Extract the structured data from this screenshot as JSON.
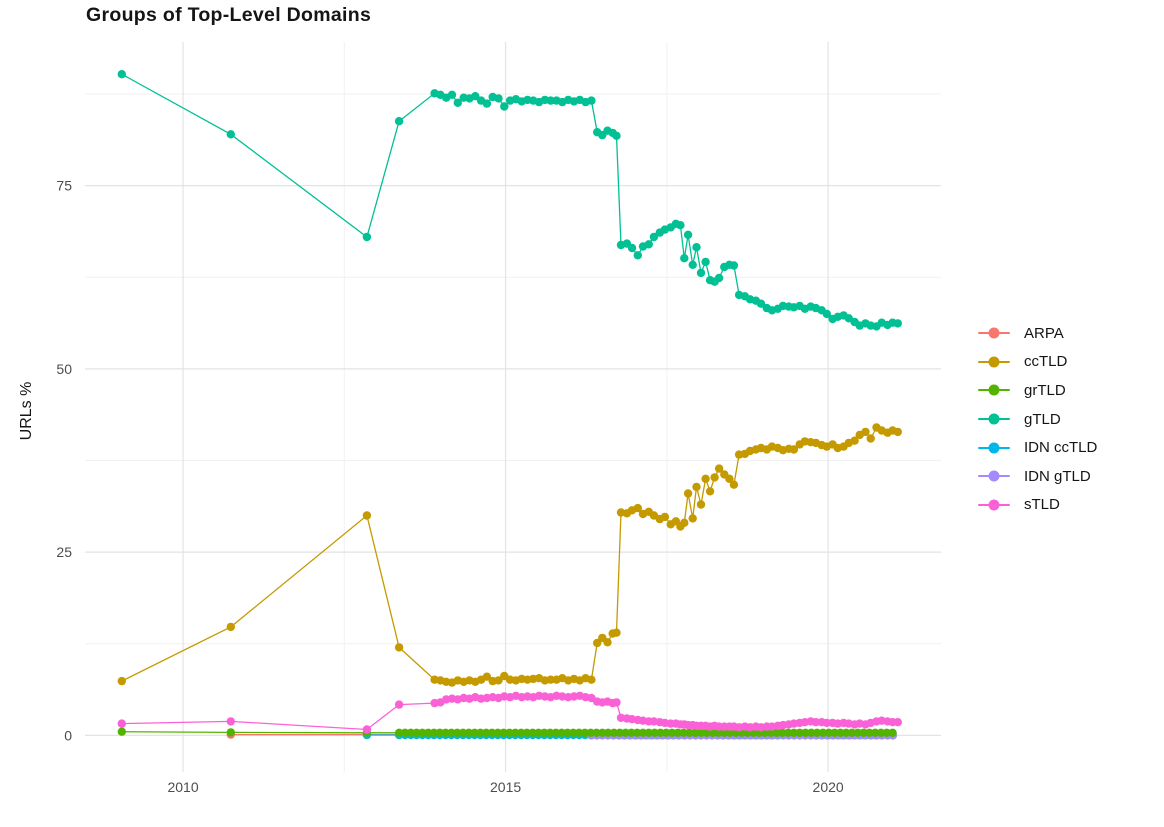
{
  "chart_data": {
    "type": "line",
    "title": "Groups of Top-Level Domains",
    "xlabel": "",
    "ylabel": "URLs %",
    "x_ticks": [
      2010,
      2015,
      2020
    ],
    "x_minor_gridlines": [
      2012.5,
      2017.5
    ],
    "y_ticks": [
      0,
      25,
      50,
      75
    ],
    "y_minor_gridlines": [
      12.5,
      37.5,
      62.5,
      87.5
    ],
    "xlim": [
      2008.48,
      2021.75
    ],
    "ylim": [
      -5,
      94.6
    ],
    "grid": true,
    "legend_position": "right",
    "series": [
      {
        "name": "ARPA",
        "color": "#F8766D",
        "extra_points": [
          [
            2010.74,
            0.1
          ],
          [
            2012.85,
            0.1
          ]
        ],
        "flat": {
          "from": 2013.35,
          "to": 2021.08,
          "step": 0.09,
          "value": 0.1
        }
      },
      {
        "name": "ccTLD",
        "color": "#C49A00",
        "points": [
          [
            2009.05,
            7.4
          ],
          [
            2010.74,
            14.8
          ],
          [
            2012.85,
            30.0
          ],
          [
            2013.35,
            12.0
          ],
          [
            2013.9,
            7.6
          ],
          [
            2013.99,
            7.5
          ],
          [
            2014.08,
            7.3
          ],
          [
            2014.17,
            7.2
          ],
          [
            2014.26,
            7.5
          ],
          [
            2014.35,
            7.3
          ],
          [
            2014.44,
            7.5
          ],
          [
            2014.53,
            7.3
          ],
          [
            2014.62,
            7.6
          ],
          [
            2014.71,
            8.0
          ],
          [
            2014.8,
            7.4
          ],
          [
            2014.89,
            7.5
          ],
          [
            2014.98,
            8.1
          ],
          [
            2015.07,
            7.6
          ],
          [
            2015.16,
            7.5
          ],
          [
            2015.25,
            7.7
          ],
          [
            2015.34,
            7.6
          ],
          [
            2015.43,
            7.7
          ],
          [
            2015.52,
            7.8
          ],
          [
            2015.61,
            7.5
          ],
          [
            2015.7,
            7.6
          ],
          [
            2015.79,
            7.6
          ],
          [
            2015.88,
            7.8
          ],
          [
            2015.97,
            7.5
          ],
          [
            2016.06,
            7.7
          ],
          [
            2016.15,
            7.5
          ],
          [
            2016.24,
            7.8
          ],
          [
            2016.33,
            7.6
          ],
          [
            2016.42,
            12.6
          ],
          [
            2016.5,
            13.3
          ],
          [
            2016.58,
            12.7
          ],
          [
            2016.66,
            13.9
          ],
          [
            2016.72,
            14.0
          ],
          [
            2016.79,
            30.4
          ],
          [
            2016.88,
            30.3
          ],
          [
            2016.96,
            30.7
          ],
          [
            2017.05,
            31.0
          ],
          [
            2017.13,
            30.2
          ],
          [
            2017.22,
            30.5
          ],
          [
            2017.3,
            30.0
          ],
          [
            2017.39,
            29.5
          ],
          [
            2017.47,
            29.8
          ],
          [
            2017.56,
            28.8
          ],
          [
            2017.64,
            29.2
          ],
          [
            2017.71,
            28.5
          ],
          [
            2017.77,
            29.0
          ],
          [
            2017.83,
            33.0
          ],
          [
            2017.9,
            29.6
          ],
          [
            2017.96,
            33.9
          ],
          [
            2018.03,
            31.5
          ],
          [
            2018.1,
            35.0
          ],
          [
            2018.17,
            33.3
          ],
          [
            2018.24,
            35.2
          ],
          [
            2018.31,
            36.4
          ],
          [
            2018.39,
            35.6
          ],
          [
            2018.47,
            35.0
          ],
          [
            2018.54,
            34.2
          ],
          [
            2018.62,
            38.3
          ],
          [
            2018.71,
            38.4
          ],
          [
            2018.79,
            38.8
          ],
          [
            2018.88,
            39.0
          ],
          [
            2018.96,
            39.2
          ],
          [
            2019.05,
            39.0
          ],
          [
            2019.13,
            39.4
          ],
          [
            2019.22,
            39.2
          ],
          [
            2019.3,
            38.9
          ],
          [
            2019.39,
            39.1
          ],
          [
            2019.47,
            39.0
          ],
          [
            2019.56,
            39.7
          ],
          [
            2019.64,
            40.1
          ],
          [
            2019.73,
            40.0
          ],
          [
            2019.81,
            39.9
          ],
          [
            2019.9,
            39.6
          ],
          [
            2019.98,
            39.4
          ],
          [
            2020.07,
            39.7
          ],
          [
            2020.15,
            39.2
          ],
          [
            2020.24,
            39.4
          ],
          [
            2020.32,
            39.9
          ],
          [
            2020.41,
            40.2
          ],
          [
            2020.49,
            41.0
          ],
          [
            2020.58,
            41.4
          ],
          [
            2020.66,
            40.5
          ],
          [
            2020.75,
            42.0
          ],
          [
            2020.83,
            41.6
          ],
          [
            2020.92,
            41.3
          ],
          [
            2021.0,
            41.6
          ],
          [
            2021.08,
            41.4
          ]
        ]
      },
      {
        "name": "grTLD",
        "color": "#53B400",
        "extra_points": [
          [
            2009.05,
            0.5
          ],
          [
            2010.74,
            0.4
          ],
          [
            2012.85,
            0.35
          ]
        ],
        "flat": {
          "from": 2013.35,
          "to": 2021.08,
          "step": 0.09,
          "value": 0.35
        }
      },
      {
        "name": "gTLD",
        "color": "#00C094",
        "points": [
          [
            2009.05,
            90.2
          ],
          [
            2010.74,
            82.0
          ],
          [
            2012.85,
            68.0
          ],
          [
            2013.35,
            83.8
          ],
          [
            2013.9,
            87.6
          ],
          [
            2013.99,
            87.4
          ],
          [
            2014.08,
            87.0
          ],
          [
            2014.17,
            87.4
          ],
          [
            2014.26,
            86.3
          ],
          [
            2014.35,
            87.0
          ],
          [
            2014.44,
            86.9
          ],
          [
            2014.53,
            87.2
          ],
          [
            2014.62,
            86.6
          ],
          [
            2014.71,
            86.2
          ],
          [
            2014.8,
            87.1
          ],
          [
            2014.89,
            86.9
          ],
          [
            2014.98,
            85.8
          ],
          [
            2015.07,
            86.6
          ],
          [
            2015.16,
            86.8
          ],
          [
            2015.25,
            86.5
          ],
          [
            2015.34,
            86.7
          ],
          [
            2015.43,
            86.6
          ],
          [
            2015.52,
            86.4
          ],
          [
            2015.61,
            86.7
          ],
          [
            2015.7,
            86.6
          ],
          [
            2015.79,
            86.6
          ],
          [
            2015.88,
            86.4
          ],
          [
            2015.97,
            86.7
          ],
          [
            2016.06,
            86.5
          ],
          [
            2016.15,
            86.7
          ],
          [
            2016.24,
            86.4
          ],
          [
            2016.33,
            86.6
          ],
          [
            2016.42,
            82.3
          ],
          [
            2016.5,
            81.9
          ],
          [
            2016.58,
            82.5
          ],
          [
            2016.66,
            82.2
          ],
          [
            2016.72,
            81.8
          ],
          [
            2016.79,
            66.9
          ],
          [
            2016.88,
            67.1
          ],
          [
            2016.96,
            66.5
          ],
          [
            2017.05,
            65.5
          ],
          [
            2017.13,
            66.7
          ],
          [
            2017.22,
            67.0
          ],
          [
            2017.3,
            68.0
          ],
          [
            2017.39,
            68.6
          ],
          [
            2017.47,
            69.0
          ],
          [
            2017.56,
            69.3
          ],
          [
            2017.64,
            69.8
          ],
          [
            2017.71,
            69.6
          ],
          [
            2017.77,
            65.1
          ],
          [
            2017.83,
            68.3
          ],
          [
            2017.9,
            64.2
          ],
          [
            2017.96,
            66.6
          ],
          [
            2018.03,
            63.1
          ],
          [
            2018.1,
            64.6
          ],
          [
            2018.17,
            62.1
          ],
          [
            2018.24,
            61.9
          ],
          [
            2018.31,
            62.4
          ],
          [
            2018.39,
            63.9
          ],
          [
            2018.47,
            64.2
          ],
          [
            2018.54,
            64.1
          ],
          [
            2018.62,
            60.1
          ],
          [
            2018.71,
            59.9
          ],
          [
            2018.79,
            59.5
          ],
          [
            2018.88,
            59.3
          ],
          [
            2018.96,
            58.9
          ],
          [
            2019.05,
            58.3
          ],
          [
            2019.13,
            58.0
          ],
          [
            2019.22,
            58.2
          ],
          [
            2019.3,
            58.6
          ],
          [
            2019.39,
            58.5
          ],
          [
            2019.47,
            58.4
          ],
          [
            2019.56,
            58.6
          ],
          [
            2019.64,
            58.2
          ],
          [
            2019.73,
            58.5
          ],
          [
            2019.81,
            58.3
          ],
          [
            2019.9,
            58.0
          ],
          [
            2019.98,
            57.5
          ],
          [
            2020.07,
            56.8
          ],
          [
            2020.15,
            57.1
          ],
          [
            2020.24,
            57.3
          ],
          [
            2020.32,
            56.9
          ],
          [
            2020.41,
            56.4
          ],
          [
            2020.49,
            55.9
          ],
          [
            2020.58,
            56.2
          ],
          [
            2020.66,
            55.9
          ],
          [
            2020.75,
            55.8
          ],
          [
            2020.83,
            56.3
          ],
          [
            2020.92,
            56.0
          ],
          [
            2021.0,
            56.3
          ],
          [
            2021.08,
            56.2
          ]
        ]
      },
      {
        "name": "IDN ccTLD",
        "color": "#00B6EB",
        "extra_points": [
          [
            2012.85,
            0.05
          ]
        ],
        "flat": {
          "from": 2013.35,
          "to": 2021.08,
          "step": 0.09,
          "value": 0.05
        }
      },
      {
        "name": "IDN gTLD",
        "color": "#A58AFF",
        "flat": {
          "from": 2016.33,
          "to": 2021.08,
          "step": 0.085,
          "value": 0.0
        }
      },
      {
        "name": "sTLD",
        "color": "#FB61D7",
        "points": [
          [
            2009.05,
            1.6
          ],
          [
            2010.74,
            1.9
          ],
          [
            2012.85,
            0.8
          ],
          [
            2013.35,
            4.2
          ],
          [
            2013.9,
            4.4
          ],
          [
            2013.99,
            4.5
          ],
          [
            2014.08,
            4.9
          ],
          [
            2014.17,
            5.0
          ],
          [
            2014.26,
            4.9
          ],
          [
            2014.35,
            5.1
          ],
          [
            2014.44,
            5.0
          ],
          [
            2014.53,
            5.2
          ],
          [
            2014.62,
            5.0
          ],
          [
            2014.71,
            5.1
          ],
          [
            2014.8,
            5.2
          ],
          [
            2014.89,
            5.1
          ],
          [
            2014.98,
            5.3
          ],
          [
            2015.07,
            5.2
          ],
          [
            2015.16,
            5.4
          ],
          [
            2015.25,
            5.2
          ],
          [
            2015.34,
            5.3
          ],
          [
            2015.43,
            5.2
          ],
          [
            2015.52,
            5.4
          ],
          [
            2015.61,
            5.3
          ],
          [
            2015.7,
            5.2
          ],
          [
            2015.79,
            5.4
          ],
          [
            2015.88,
            5.3
          ],
          [
            2015.97,
            5.2
          ],
          [
            2016.06,
            5.3
          ],
          [
            2016.15,
            5.4
          ],
          [
            2016.24,
            5.2
          ],
          [
            2016.33,
            5.1
          ],
          [
            2016.42,
            4.6
          ],
          [
            2016.5,
            4.5
          ],
          [
            2016.58,
            4.6
          ],
          [
            2016.66,
            4.4
          ],
          [
            2016.72,
            4.5
          ],
          [
            2016.79,
            2.4
          ],
          [
            2016.88,
            2.3
          ],
          [
            2016.96,
            2.2
          ],
          [
            2017.05,
            2.1
          ],
          [
            2017.13,
            2.0
          ],
          [
            2017.22,
            1.9
          ],
          [
            2017.3,
            1.9
          ],
          [
            2017.39,
            1.8
          ],
          [
            2017.47,
            1.7
          ],
          [
            2017.56,
            1.6
          ],
          [
            2017.64,
            1.6
          ],
          [
            2017.71,
            1.5
          ],
          [
            2017.77,
            1.5
          ],
          [
            2017.83,
            1.4
          ],
          [
            2017.9,
            1.4
          ],
          [
            2017.96,
            1.3
          ],
          [
            2018.03,
            1.3
          ],
          [
            2018.1,
            1.3
          ],
          [
            2018.17,
            1.2
          ],
          [
            2018.24,
            1.3
          ],
          [
            2018.31,
            1.2
          ],
          [
            2018.39,
            1.2
          ],
          [
            2018.47,
            1.2
          ],
          [
            2018.54,
            1.2
          ],
          [
            2018.62,
            1.1
          ],
          [
            2018.71,
            1.2
          ],
          [
            2018.79,
            1.1
          ],
          [
            2018.88,
            1.2
          ],
          [
            2018.96,
            1.1
          ],
          [
            2019.05,
            1.2
          ],
          [
            2019.13,
            1.2
          ],
          [
            2019.22,
            1.3
          ],
          [
            2019.3,
            1.4
          ],
          [
            2019.39,
            1.5
          ],
          [
            2019.47,
            1.6
          ],
          [
            2019.56,
            1.7
          ],
          [
            2019.64,
            1.8
          ],
          [
            2019.73,
            1.9
          ],
          [
            2019.81,
            1.8
          ],
          [
            2019.9,
            1.8
          ],
          [
            2019.98,
            1.7
          ],
          [
            2020.07,
            1.7
          ],
          [
            2020.15,
            1.6
          ],
          [
            2020.24,
            1.7
          ],
          [
            2020.32,
            1.6
          ],
          [
            2020.41,
            1.5
          ],
          [
            2020.49,
            1.6
          ],
          [
            2020.58,
            1.5
          ],
          [
            2020.66,
            1.7
          ],
          [
            2020.75,
            1.9
          ],
          [
            2020.83,
            2.0
          ],
          [
            2020.92,
            1.9
          ],
          [
            2021.0,
            1.8
          ],
          [
            2021.08,
            1.8
          ]
        ]
      }
    ]
  }
}
